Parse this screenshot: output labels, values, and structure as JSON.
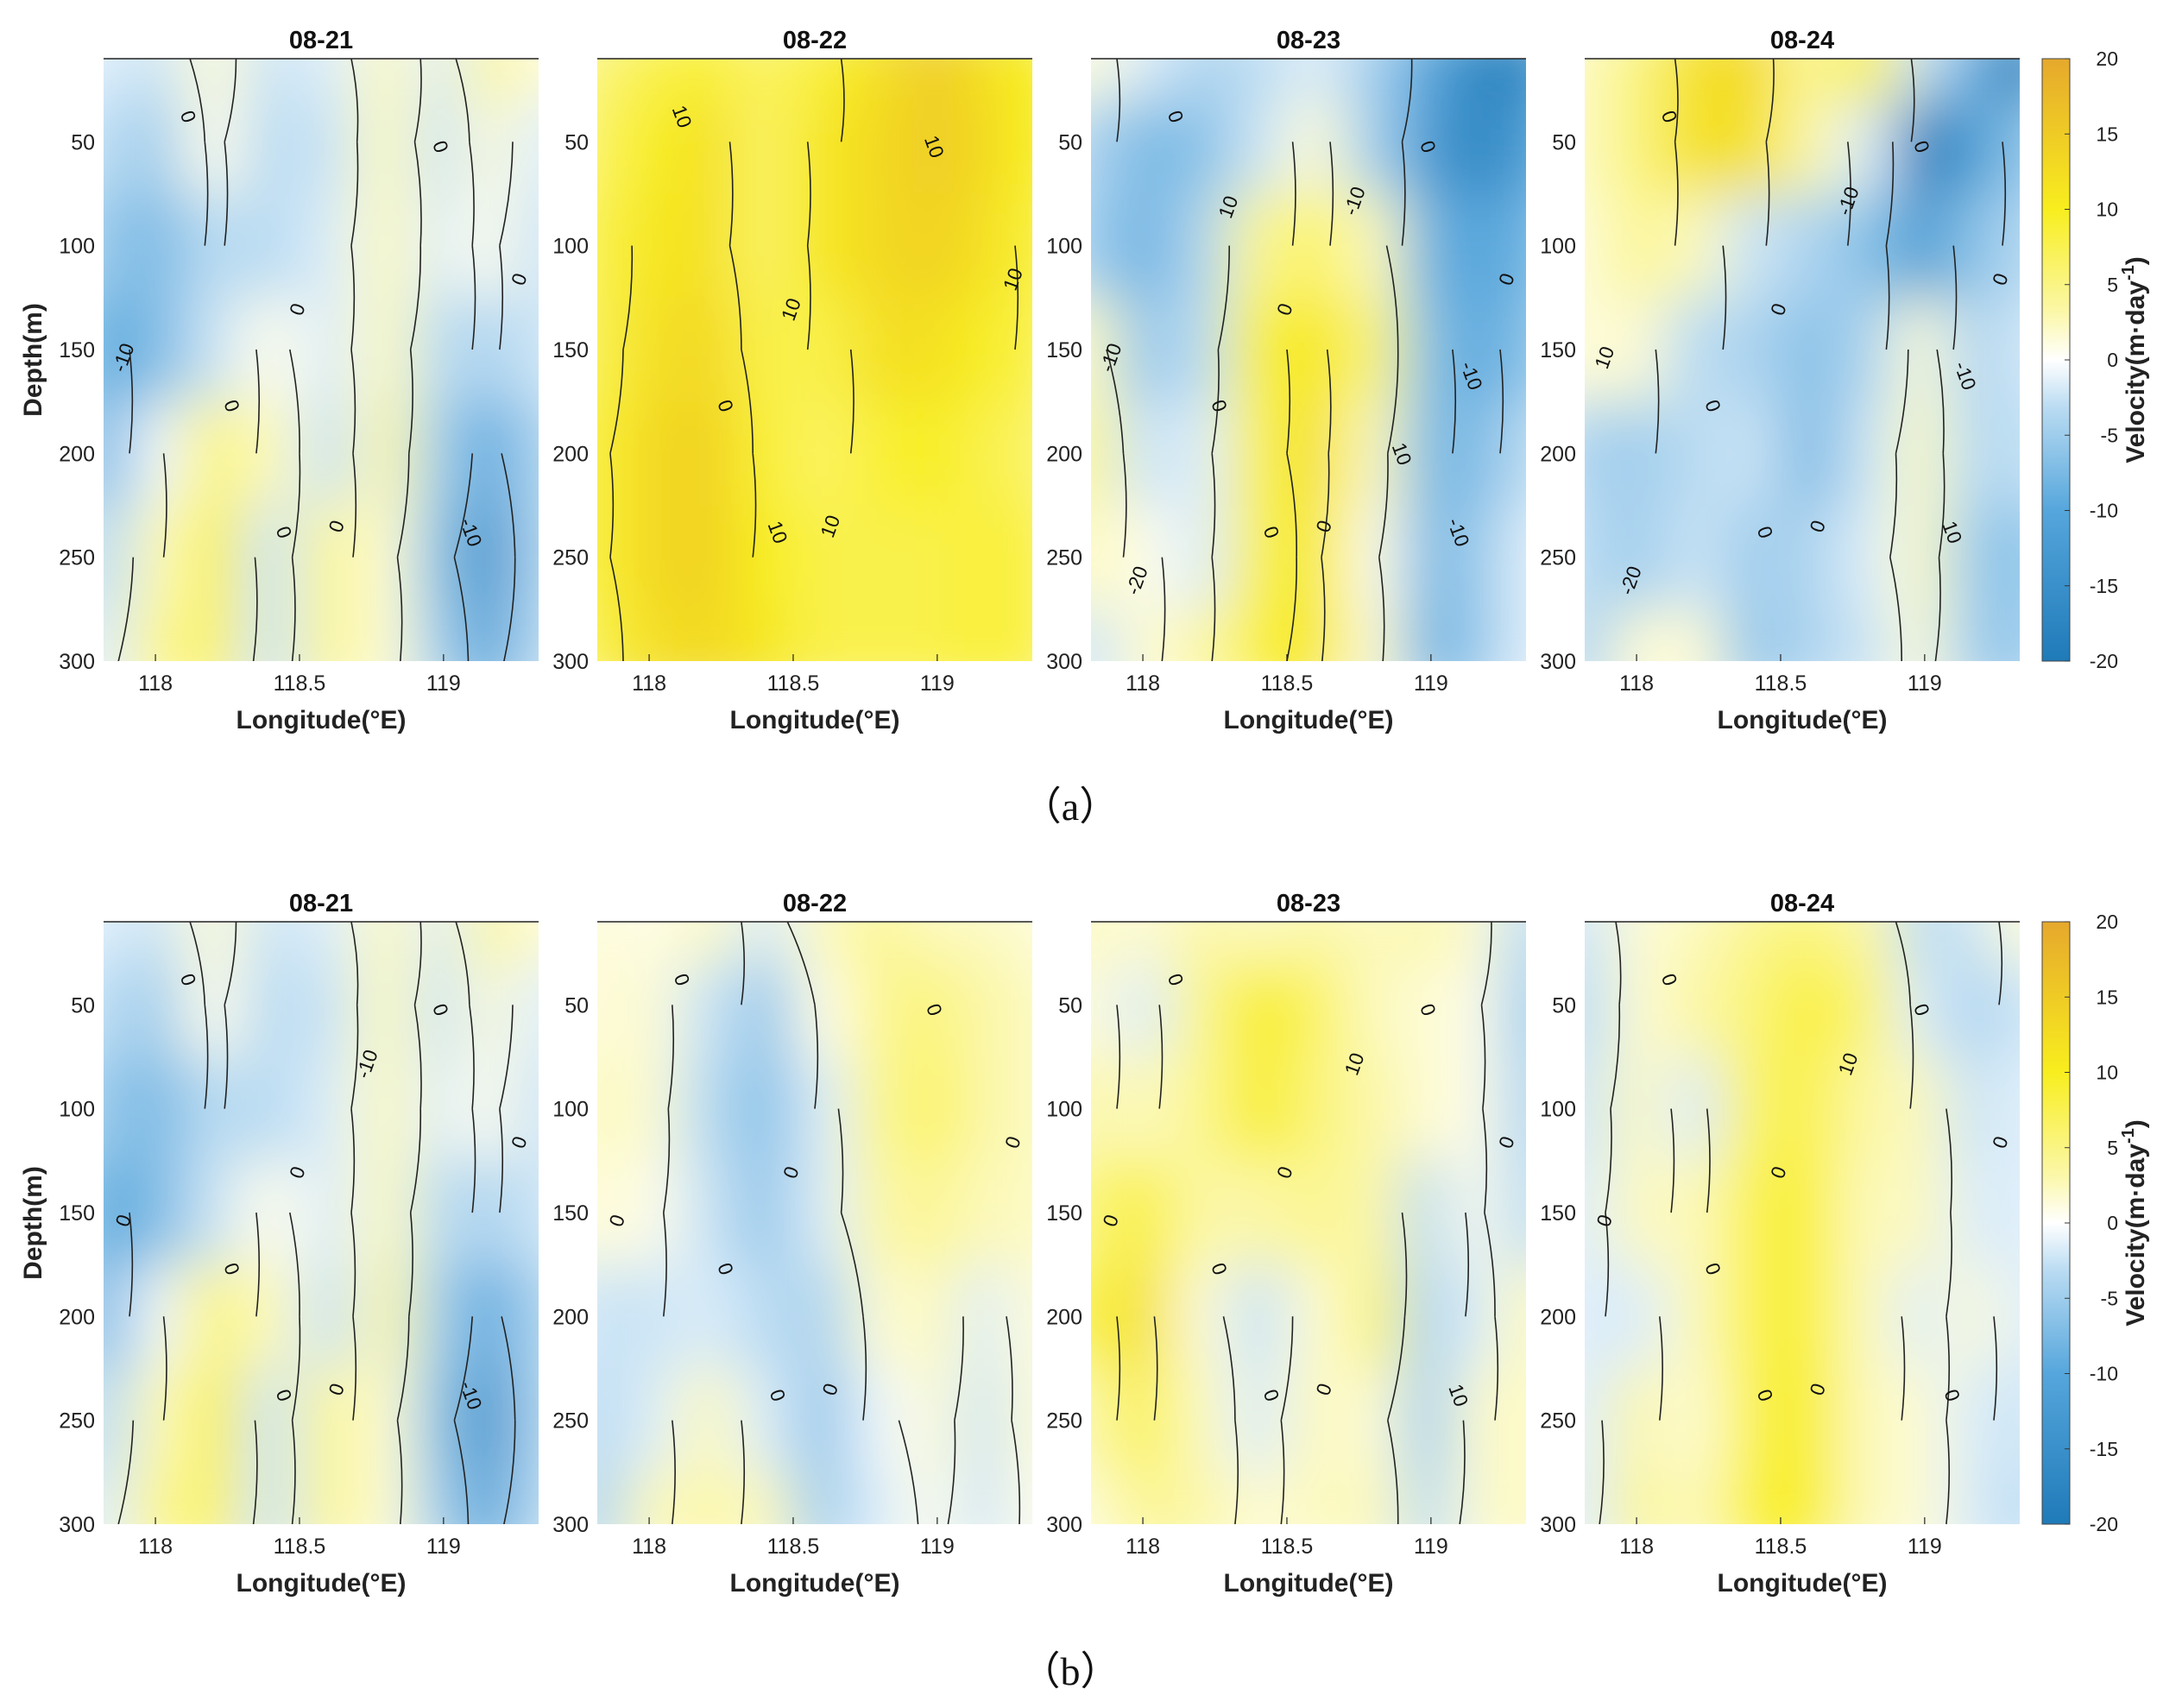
{
  "colormap": {
    "neg_strong": "#1f7ab8",
    "neg_mid": "#55a6dc",
    "neg_light": "#b9dbf2",
    "zero": "#ffffff",
    "pos_light": "#fbf7a8",
    "pos_mid": "#f8ee1e",
    "pos_strong": "#e6a82c",
    "contour_color": "#222222"
  },
  "shared_axes": {
    "xlabel": "Longitude(°E)",
    "ylabel": "Depth(m)",
    "xlim": [
      117.82,
      119.33
    ],
    "xticks": [
      118,
      118.5,
      119
    ],
    "xtick_labels": [
      "118",
      "118.5",
      "119"
    ],
    "ylim": [
      10,
      300
    ],
    "yticks": [
      50,
      100,
      150,
      200,
      250,
      300
    ],
    "ytick_labels": [
      "50",
      "100",
      "150",
      "200",
      "250",
      "300"
    ]
  },
  "colorbar": {
    "label": "Velocity(m·day",
    "label_superscript": "-1",
    "label_close": ")",
    "range": [
      -20,
      20
    ],
    "ticks": [
      20,
      15,
      10,
      5,
      0,
      -5,
      -10,
      -15,
      -20
    ],
    "tick_labels": [
      "20",
      "15",
      "10",
      "5",
      "0",
      "-5",
      "-10",
      "-15",
      "-20"
    ]
  },
  "rows": [
    {
      "caption": "（a）",
      "panels": [
        {
          "title": "08-21",
          "contour_labels": [
            "0",
            "0",
            "0",
            "0",
            "0",
            "0",
            "0",
            "-10",
            "-10"
          ]
        },
        {
          "title": "08-22",
          "contour_labels": [
            "10",
            "10",
            "10",
            "10",
            "10",
            "10",
            "0"
          ]
        },
        {
          "title": "08-23",
          "contour_labels": [
            "0",
            "0",
            "0",
            "0",
            "0",
            "0",
            "0",
            "-10",
            "-10",
            "-10",
            "-10",
            "-20",
            "10",
            "10"
          ]
        },
        {
          "title": "08-24",
          "contour_labels": [
            "0",
            "0",
            "0",
            "0",
            "0",
            "0",
            "0",
            "10",
            "10",
            "-10",
            "-10",
            "-20"
          ]
        }
      ]
    },
    {
      "caption": "（b）",
      "panels": [
        {
          "title": "08-21",
          "contour_labels": [
            "0",
            "0",
            "0",
            "0",
            "0",
            "0",
            "0",
            "0",
            "-10",
            "-10"
          ]
        },
        {
          "title": "08-22",
          "contour_labels": [
            "0",
            "0",
            "0",
            "0",
            "0",
            "0",
            "0",
            "0"
          ]
        },
        {
          "title": "08-23",
          "contour_labels": [
            "0",
            "0",
            "0",
            "0",
            "0",
            "0",
            "0",
            "0",
            "10",
            "10"
          ]
        },
        {
          "title": "08-24",
          "contour_labels": [
            "0",
            "0",
            "0",
            "0",
            "0",
            "0",
            "0",
            "0",
            "0",
            "10"
          ]
        }
      ]
    }
  ],
  "chart_data": [
    {
      "type": "heatmap",
      "title": "08-21",
      "xlabel": "Longitude(°E)",
      "ylabel": "Depth(m)",
      "xlim": [
        117.82,
        119.33
      ],
      "ylim": [
        10,
        300
      ],
      "zlim": [
        -20,
        20
      ],
      "x": [
        117.82,
        118.0,
        118.2,
        118.4,
        118.6,
        118.8,
        119.0,
        119.15,
        119.33
      ],
      "y": [
        10,
        50,
        100,
        150,
        200,
        250,
        300
      ],
      "z": [
        [
          -2,
          -3,
          2,
          -3,
          -2,
          3,
          -2,
          5,
          2
        ],
        [
          -4,
          -6,
          1,
          -4,
          -3,
          3,
          -3,
          2,
          -2
        ],
        [
          -7,
          -9,
          -4,
          -4,
          -2,
          3,
          -2,
          1,
          -3
        ],
        [
          -11,
          -9,
          -3,
          1,
          -2,
          3,
          -4,
          -5,
          -3
        ],
        [
          -9,
          -1,
          6,
          3,
          -3,
          4,
          -6,
          -12,
          -5
        ],
        [
          -4,
          3,
          8,
          -3,
          5,
          2,
          -8,
          -16,
          -5
        ],
        [
          -2,
          5,
          7,
          -3,
          5,
          2,
          -6,
          -13,
          -4
        ]
      ]
    },
    {
      "type": "heatmap",
      "title": "08-22",
      "xlabel": "Longitude(°E)",
      "ylabel": "Depth(m)",
      "xlim": [
        117.82,
        119.33
      ],
      "ylim": [
        10,
        300
      ],
      "zlim": [
        -20,
        20
      ],
      "x": [
        117.82,
        118.0,
        118.2,
        118.4,
        118.6,
        118.8,
        119.0,
        119.15,
        119.33
      ],
      "y": [
        10,
        50,
        100,
        150,
        200,
        250,
        300
      ],
      "z": [
        [
          6,
          8,
          9,
          7,
          9,
          12,
          15,
          12,
          10
        ],
        [
          7,
          10,
          12,
          7,
          11,
          13,
          15,
          13,
          10
        ],
        [
          8,
          11,
          12,
          7,
          11,
          13,
          14,
          12,
          9
        ],
        [
          8,
          12,
          13,
          8,
          8,
          12,
          12,
          10,
          8
        ],
        [
          9,
          13,
          14,
          9,
          7,
          9,
          10,
          8,
          7
        ],
        [
          9,
          13,
          14,
          10,
          8,
          8,
          8,
          9,
          8
        ],
        [
          8,
          12,
          13,
          11,
          8,
          8,
          8,
          9,
          8
        ]
      ]
    },
    {
      "type": "heatmap",
      "title": "08-23",
      "xlabel": "Longitude(°E)",
      "ylabel": "Depth(m)",
      "xlim": [
        117.82,
        119.33
      ],
      "ylim": [
        10,
        300
      ],
      "zlim": [
        -20,
        20
      ],
      "x": [
        117.82,
        118.0,
        118.2,
        118.4,
        118.6,
        118.8,
        119.0,
        119.15,
        119.33
      ],
      "y": [
        10,
        50,
        100,
        150,
        200,
        250,
        300
      ],
      "z": [
        [
          2,
          -2,
          -5,
          -4,
          -2,
          -6,
          -12,
          -18,
          -18
        ],
        [
          -5,
          -9,
          -8,
          -3,
          2,
          -6,
          -14,
          -18,
          -14
        ],
        [
          -6,
          -10,
          -5,
          5,
          7,
          3,
          -10,
          -13,
          -10
        ],
        [
          3,
          -7,
          -4,
          9,
          11,
          6,
          -8,
          -12,
          -8
        ],
        [
          5,
          -3,
          -2,
          8,
          12,
          3,
          -9,
          -9,
          -4
        ],
        [
          3,
          1,
          -2,
          8,
          11,
          1,
          -9,
          -7,
          -2
        ],
        [
          -3,
          2,
          4,
          9,
          11,
          2,
          -10,
          -7,
          -2
        ]
      ]
    },
    {
      "type": "heatmap",
      "title": "08-24",
      "xlabel": "Longitude(°E)",
      "ylabel": "Depth(m)",
      "xlim": [
        117.82,
        119.33
      ],
      "ylim": [
        10,
        300
      ],
      "zlim": [
        -20,
        20
      ],
      "x": [
        117.82,
        118.0,
        118.2,
        118.4,
        118.6,
        118.8,
        119.0,
        119.15,
        119.33
      ],
      "y": [
        10,
        50,
        100,
        150,
        200,
        250,
        300
      ],
      "z": [
        [
          3,
          6,
          12,
          13,
          5,
          10,
          -3,
          -10,
          -20
        ],
        [
          3,
          6,
          12,
          12,
          4,
          -2,
          -20,
          -14,
          -8
        ],
        [
          2,
          5,
          3,
          -3,
          -5,
          -8,
          -14,
          -8,
          -5
        ],
        [
          2,
          2,
          -4,
          -5,
          -8,
          -5,
          2,
          -5,
          -3
        ],
        [
          -5,
          -6,
          -4,
          -3,
          -9,
          -3,
          3,
          -4,
          -4
        ],
        [
          -4,
          -6,
          -3,
          -6,
          -5,
          -2,
          3,
          -6,
          -8
        ],
        [
          -5,
          2,
          2,
          -7,
          -5,
          -3,
          2,
          -6,
          -7
        ]
      ]
    },
    {
      "type": "heatmap",
      "title": "08-21",
      "xlabel": "Longitude(°E)",
      "ylabel": "Depth(m)",
      "xlim": [
        117.82,
        119.33
      ],
      "ylim": [
        10,
        300
      ],
      "zlim": [
        -20,
        20
      ],
      "x": [
        117.82,
        118.0,
        118.2,
        118.4,
        118.6,
        118.8,
        119.0,
        119.15,
        119.33
      ],
      "y": [
        10,
        50,
        100,
        150,
        200,
        250,
        300
      ],
      "z": [
        [
          -2,
          -3,
          2,
          -3,
          -2,
          3,
          -2,
          5,
          2
        ],
        [
          -4,
          -6,
          1,
          -4,
          -3,
          3,
          -3,
          2,
          -2
        ],
        [
          -7,
          -9,
          -4,
          -4,
          -2,
          3,
          -2,
          1,
          -3
        ],
        [
          -11,
          -9,
          -3,
          1,
          -2,
          3,
          -4,
          -5,
          -3
        ],
        [
          -9,
          -1,
          6,
          3,
          -3,
          4,
          -6,
          -12,
          -5
        ],
        [
          -4,
          3,
          8,
          -3,
          5,
          2,
          -8,
          -16,
          -5
        ],
        [
          -2,
          5,
          7,
          -3,
          5,
          2,
          -6,
          -13,
          -4
        ]
      ]
    },
    {
      "type": "heatmap",
      "title": "08-22",
      "xlabel": "Longitude(°E)",
      "ylabel": "Depth(m)",
      "xlim": [
        117.82,
        119.33
      ],
      "ylim": [
        10,
        300
      ],
      "zlim": [
        -20,
        20
      ],
      "x": [
        117.82,
        118.0,
        118.2,
        118.4,
        118.6,
        118.8,
        119.0,
        119.15,
        119.33
      ],
      "y": [
        10,
        50,
        100,
        150,
        200,
        250,
        300
      ],
      "z": [
        [
          2,
          1,
          3,
          -2,
          3,
          5,
          3,
          3,
          2
        ],
        [
          2,
          2,
          -3,
          -7,
          1,
          5,
          6,
          4,
          3
        ],
        [
          3,
          2,
          -4,
          -8,
          -2,
          5,
          7,
          4,
          3
        ],
        [
          2,
          1,
          -3,
          -7,
          -2,
          4,
          5,
          3,
          3
        ],
        [
          -3,
          -3,
          -2,
          -4,
          -5,
          2,
          3,
          -2,
          2
        ],
        [
          -4,
          -2,
          3,
          -2,
          -7,
          -1,
          2,
          -3,
          2
        ],
        [
          -5,
          3,
          4,
          3,
          -6,
          -2,
          1,
          -3,
          1
        ]
      ]
    },
    {
      "type": "heatmap",
      "title": "08-23",
      "xlabel": "Longitude(°E)",
      "ylabel": "Depth(m)",
      "xlim": [
        117.82,
        119.33
      ],
      "ylim": [
        10,
        300
      ],
      "zlim": [
        -20,
        20
      ],
      "x": [
        117.82,
        118.0,
        118.2,
        118.4,
        118.6,
        118.8,
        119.0,
        119.15,
        119.33
      ],
      "y": [
        10,
        50,
        100,
        150,
        200,
        250,
        300
      ],
      "z": [
        [
          3,
          2,
          4,
          3,
          4,
          3,
          4,
          2,
          -4
        ],
        [
          2,
          -2,
          5,
          10,
          7,
          3,
          2,
          1,
          -6
        ],
        [
          4,
          3,
          5,
          10,
          6,
          4,
          2,
          1,
          -5
        ],
        [
          6,
          9,
          4,
          4,
          5,
          4,
          -4,
          1,
          -4
        ],
        [
          8,
          12,
          2,
          -3,
          2,
          6,
          -5,
          -2,
          3
        ],
        [
          4,
          8,
          3,
          -2,
          3,
          2,
          -6,
          2,
          3
        ],
        [
          2,
          5,
          4,
          2,
          3,
          3,
          -4,
          2,
          3
        ]
      ]
    },
    {
      "type": "heatmap",
      "title": "08-24",
      "xlabel": "Longitude(°E)",
      "ylabel": "Depth(m)",
      "xlim": [
        117.82,
        119.33
      ],
      "ylim": [
        10,
        300
      ],
      "zlim": [
        -20,
        20
      ],
      "x": [
        117.82,
        118.0,
        118.2,
        118.4,
        118.6,
        118.8,
        119.0,
        119.15,
        119.33
      ],
      "y": [
        10,
        50,
        100,
        150,
        200,
        250,
        300
      ],
      "z": [
        [
          -3,
          2,
          3,
          5,
          6,
          4,
          -4,
          -3,
          2
        ],
        [
          -4,
          2,
          4,
          6,
          9,
          6,
          -2,
          -5,
          -3
        ],
        [
          -3,
          3,
          -2,
          7,
          8,
          4,
          3,
          -3,
          -2
        ],
        [
          -2,
          3,
          3,
          8,
          9,
          3,
          3,
          -2,
          -2
        ],
        [
          -2,
          -2,
          3,
          8,
          9,
          3,
          -2,
          2,
          -2
        ],
        [
          -2,
          4,
          2,
          8,
          10,
          3,
          2,
          -2,
          -3
        ],
        [
          -2,
          5,
          3,
          9,
          10,
          3,
          2,
          -2,
          -4
        ]
      ]
    }
  ]
}
